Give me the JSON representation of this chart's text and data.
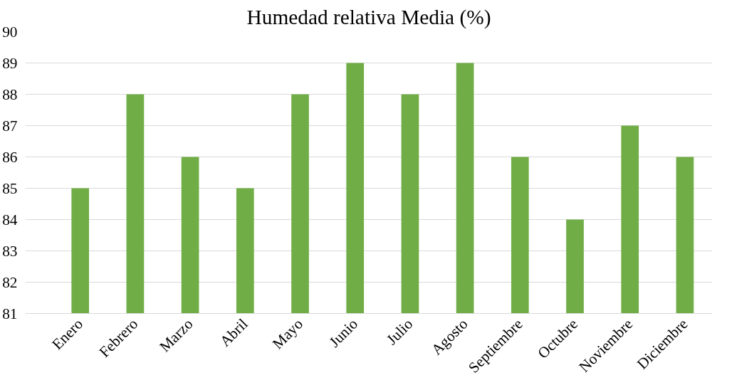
{
  "chart_data": {
    "type": "bar",
    "title": "Humedad relativa Media (%)",
    "categories": [
      "Enero",
      "Febrero",
      "Marzo",
      "Abril",
      "Mayo",
      "Junio",
      "Julio",
      "Agosto",
      "Septiembre",
      "Octubre",
      "Noviembre",
      "Diciembre"
    ],
    "values": [
      85,
      88,
      86,
      85,
      88,
      89,
      88,
      89,
      86,
      84,
      87,
      86
    ],
    "color": "#70ad47",
    "ylim": [
      81,
      90
    ],
    "yticks": [
      81,
      82,
      83,
      84,
      85,
      86,
      87,
      88,
      89,
      90
    ],
    "grid": "y"
  }
}
